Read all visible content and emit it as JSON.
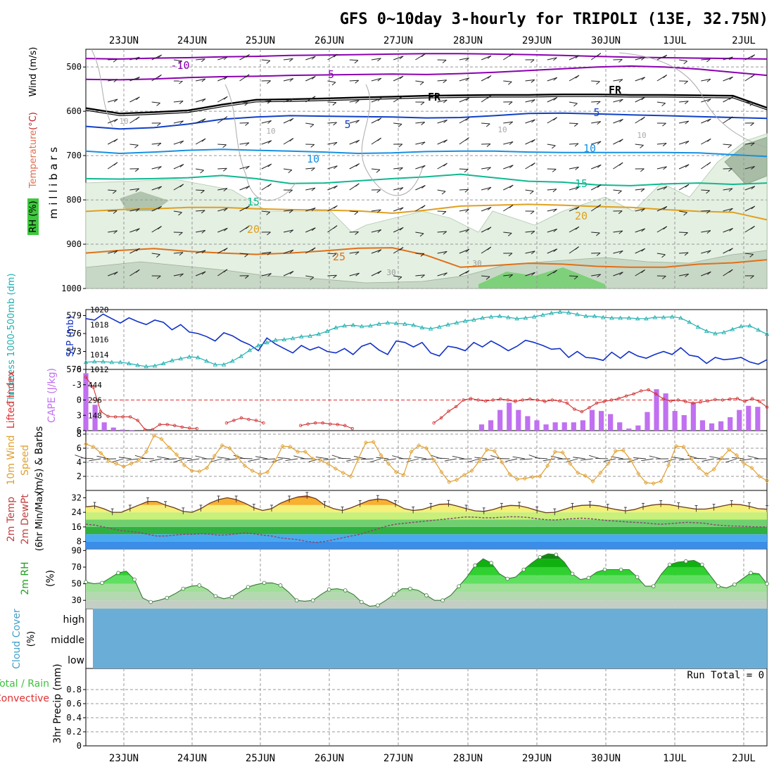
{
  "title": "GFS 0~10day 3-hourly for TRIPOLI (13E, 32.75N)",
  "dates": [
    "23JUN",
    "24JUN",
    "25JUN",
    "26JUN",
    "27JUN",
    "28JUN",
    "29JUN",
    "30JUN",
    "1JUL",
    "2JUL"
  ],
  "chart_data": [
    {
      "type": "contour",
      "panel": "upper-air",
      "ylabel_main": "m i l l i b a r s",
      "ylabel_rh": "RH (%)",
      "ylabel_temp": "Temperature",
      "ylabel_temp_unit": "(°C)",
      "ylabel_wind": "Wind (m/s)",
      "yticks": [
        500,
        600,
        700,
        800,
        900,
        1000
      ],
      "ylim": [
        460,
        1000
      ],
      "isotherms": [
        {
          "label": "-10",
          "color": "#8a00b0",
          "p": [
            481,
            482,
            480,
            479,
            477,
            476,
            474,
            473,
            472,
            471,
            470,
            470,
            471,
            472,
            474,
            476,
            478,
            479,
            480,
            481,
            482
          ]
        },
        {
          "label": "-5",
          "color": "#8a00b0",
          "p": [
            528,
            529,
            527,
            524,
            522,
            521,
            519,
            518,
            517,
            516,
            517,
            515,
            512,
            508,
            504,
            500,
            498,
            500,
            505,
            512,
            519
          ]
        },
        {
          "label": "FR",
          "color": "#000000",
          "p": [
            593,
            605,
            602,
            598,
            585,
            574,
            573,
            571,
            569,
            567,
            565,
            564,
            563,
            563,
            562,
            562,
            563,
            563,
            564,
            565,
            592
          ]
        },
        {
          "label": "5",
          "color": "#1040c8",
          "p": [
            634,
            640,
            637,
            629,
            618,
            613,
            610,
            611,
            612,
            613,
            615,
            614,
            610,
            605,
            604,
            606,
            608,
            610,
            612,
            614,
            616
          ]
        },
        {
          "label": "10",
          "color": "#1890e0",
          "p": [
            690,
            695,
            692,
            688,
            686,
            688,
            690,
            692,
            695,
            694,
            691,
            690,
            690,
            692,
            693,
            693,
            693,
            693,
            694,
            698,
            702
          ]
        },
        {
          "label": "15",
          "color": "#10b890",
          "p": [
            752,
            753,
            752,
            750,
            745,
            752,
            763,
            762,
            757,
            752,
            748,
            742,
            750,
            758,
            760,
            766,
            768,
            764,
            762,
            765,
            762
          ]
        },
        {
          "label": "20",
          "color": "#e0a020",
          "p": [
            826,
            822,
            820,
            817,
            817,
            820,
            822,
            823,
            825,
            830,
            823,
            814,
            812,
            810,
            812,
            815,
            817,
            822,
            826,
            828,
            845
          ]
        },
        {
          "label": "25",
          "color": "#e07018",
          "p": [
            920,
            914,
            910,
            916,
            920,
            923,
            920,
            915,
            909,
            908,
            925,
            952,
            948,
            943,
            945,
            950,
            952,
            952,
            945,
            942,
            935
          ]
        }
      ],
      "contour_labels": [
        "-10",
        "-5",
        "FR",
        "FR",
        "5",
        "5",
        "10",
        "10",
        "15",
        "15",
        "20",
        "20",
        "25",
        "30",
        "30",
        "10",
        "10",
        "10",
        "10"
      ]
    },
    {
      "type": "line",
      "panel": "thickness-slp",
      "ylabel_left": "Thickness 1000-500mb (dm)",
      "ylabel_right": "SLP (mb)",
      "yticks_left": [
        570,
        573,
        576,
        579
      ],
      "yticks_right": [
        1012,
        1014,
        1016,
        1018,
        1020
      ],
      "ylim_left": [
        570,
        580
      ],
      "ylim_right": [
        1012,
        1020
      ],
      "series": [
        {
          "name": "SLP",
          "color": "#1030c8",
          "values": [
            1018.8,
            1018.6,
            1019.4,
            1018.8,
            1018.2,
            1018.9,
            1018.4,
            1018.0,
            1018.6,
            1018.3,
            1017.3,
            1018.0,
            1017.0,
            1016.8,
            1016.4,
            1015.8,
            1016.9,
            1016.5,
            1015.8,
            1015.3,
            1014.5,
            1016.2,
            1015.4,
            1014.8,
            1014.2,
            1015.2,
            1014.6,
            1015.0,
            1014.4,
            1014.2,
            1014.8,
            1014.0,
            1015.1,
            1015.5,
            1014.6,
            1014.0,
            1015.8,
            1015.6,
            1015.0,
            1015.6,
            1014.2,
            1013.8,
            1015.1,
            1014.9,
            1014.5,
            1015.6,
            1015.0,
            1015.8,
            1015.2,
            1014.5,
            1015.1,
            1015.9,
            1015.6,
            1015.2,
            1014.7,
            1014.8,
            1013.6,
            1014.4,
            1013.6,
            1013.5,
            1013.2,
            1014.3,
            1013.5,
            1014.4,
            1013.8,
            1013.5,
            1014.0,
            1014.4,
            1014.0,
            1014.9,
            1013.9,
            1013.7,
            1012.8,
            1013.6,
            1013.3,
            1013.4,
            1013.6,
            1013.0,
            1012.7,
            1013.3
          ]
        },
        {
          "name": "Thickness",
          "color": "#20b0b0",
          "values": [
            571.2,
            571.3,
            571.3,
            571.2,
            571.2,
            571.0,
            570.7,
            570.5,
            570.6,
            571.0,
            571.5,
            571.8,
            572.1,
            572.0,
            571.4,
            570.8,
            570.8,
            571.4,
            572.2,
            573.2,
            574.0,
            574.5,
            574.9,
            575.0,
            575.2,
            575.5,
            575.6,
            575.9,
            576.4,
            577.0,
            577.3,
            577.4,
            577.2,
            577.3,
            577.6,
            577.8,
            577.7,
            577.6,
            577.4,
            577.0,
            576.8,
            577.1,
            577.5,
            577.8,
            578.1,
            578.3,
            578.6,
            578.8,
            578.9,
            578.7,
            578.5,
            578.6,
            578.8,
            579.1,
            579.4,
            579.6,
            579.5,
            579.2,
            578.9,
            578.9,
            578.7,
            578.6,
            578.6,
            578.6,
            578.5,
            578.5,
            578.7,
            578.7,
            578.8,
            578.6,
            577.9,
            577.1,
            576.4,
            576.0,
            576.2,
            576.7,
            577.2,
            577.3,
            576.6,
            575.9
          ]
        }
      ]
    },
    {
      "type": "bar+line",
      "panel": "lifted-index-cape",
      "ylabel_left": "Lifted Index",
      "ylabel_right": "CAPE (J/kg)",
      "yticks_left": [
        -6,
        -3,
        0,
        3,
        6
      ],
      "yticks_right": [
        148,
        296,
        444
      ],
      "ylim_left": [
        -6,
        6
      ],
      "ylim_cape": [
        0,
        592
      ],
      "cape": [
        555,
        250,
        80,
        30,
        10,
        5,
        0,
        0,
        0,
        0,
        0,
        0,
        0,
        0,
        0,
        0,
        0,
        0,
        0,
        0,
        0,
        0,
        0,
        0,
        0,
        0,
        0,
        0,
        0,
        0,
        0,
        0,
        0,
        0,
        0,
        0,
        0,
        0,
        0,
        0,
        0,
        0,
        0,
        60,
        100,
        200,
        270,
        200,
        140,
        100,
        60,
        80,
        80,
        80,
        100,
        200,
        190,
        160,
        80,
        20,
        50,
        180,
        400,
        360,
        190,
        150,
        270,
        100,
        70,
        90,
        130,
        200,
        240,
        230,
        0
      ],
      "lifted_index": [
        -4.5,
        -2.5,
        2.2,
        3.2,
        3.3,
        3.3,
        3.3,
        4.0,
        5.8,
        5.8,
        4.8,
        4.8,
        5.0,
        5.3,
        5.5,
        5.6,
        null,
        null,
        null,
        4.5,
        4.0,
        3.5,
        3.8,
        4.0,
        4.5,
        null,
        null,
        null,
        null,
        5.0,
        4.7,
        4.5,
        4.5,
        4.7,
        4.8,
        5.0,
        5.6,
        null,
        null,
        null,
        null,
        null,
        null,
        null,
        null,
        null,
        null,
        4.5,
        3.5,
        2.2,
        1.3,
        0.0,
        -0.3,
        0.0,
        0.2,
        0.0,
        -0.2,
        0.0,
        0.3,
        0.0,
        -0.2,
        0.0,
        0.3,
        0.0,
        0.2,
        0.6,
        1.8,
        2.3,
        1.5,
        0.6,
        0.3,
        0.0,
        -0.3,
        -0.8,
        -1.2,
        -1.8,
        -2.0,
        -1.2,
        -0.2,
        0.2,
        0.0,
        0.3,
        0.6,
        0.4,
        0.2,
        -0.1,
        0.0,
        -0.2,
        -0.3,
        0.3,
        -0.3,
        0.3,
        1.4
      ]
    },
    {
      "type": "line",
      "panel": "10m-wind",
      "ylabel": "10m Wind",
      "ylabel2": "Speed",
      "ylabel3": "(m/s) & Barbs",
      "yticks": [
        2,
        4,
        6,
        8
      ],
      "ylim": [
        0,
        8.5
      ],
      "values": [
        6.6,
        6.2,
        5.3,
        4.2,
        3.8,
        3.4,
        3.8,
        4.3,
        5.5,
        7.8,
        7.3,
        6.1,
        5.1,
        3.6,
        2.8,
        2.7,
        3.2,
        4.9,
        6.4,
        6.0,
        4.8,
        3.5,
        2.8,
        2.3,
        2.6,
        4.2,
        6.3,
        6.2,
        5.5,
        5.5,
        4.5,
        4.3,
        3.8,
        3.1,
        2.5,
        2.0,
        4.5,
        6.8,
        6.9,
        5.0,
        3.8,
        2.6,
        2.2,
        5.5,
        6.4,
        6.0,
        4.3,
        2.6,
        1.2,
        1.5,
        2.2,
        2.8,
        4.2,
        5.8,
        5.6,
        4.0,
        2.3,
        1.6,
        1.7,
        1.9,
        2.0,
        3.5,
        5.5,
        5.4,
        3.8,
        2.5,
        2.1,
        1.3,
        2.5,
        3.8,
        5.6,
        5.7,
        4.3,
        2.4,
        1.1,
        1.0,
        1.3,
        3.6,
        6.3,
        6.2,
        4.5,
        3.2,
        2.3,
        3.0,
        4.6,
        5.8,
        5.0,
        3.8,
        3.2,
        2.0,
        1.4
      ]
    },
    {
      "type": "area",
      "panel": "2m-temp",
      "ylabel": "2m Temp",
      "ylabel2": "2m DewPt",
      "ylabel3": "(6hr Min/Max)",
      "yticks": [
        8,
        16,
        24,
        32
      ],
      "ylim": [
        4,
        36
      ],
      "temp": [
        27,
        27.5,
        26,
        24,
        24,
        26,
        28,
        30,
        30,
        28,
        26.5,
        24.5,
        24,
        26,
        29,
        31,
        32,
        31,
        29,
        26.5,
        25,
        26,
        29,
        31,
        32.5,
        33,
        31.5,
        28,
        26,
        25,
        26.5,
        28.5,
        30.5,
        31.3,
        30.8,
        28.5,
        26,
        25,
        25.5,
        27,
        28.4,
        28.6,
        27.4,
        26,
        24.8,
        24.5,
        25.5,
        27,
        27.8,
        27.6,
        26.5,
        25,
        23.8,
        24,
        25.5,
        27,
        27.8,
        28,
        27.6,
        26.5,
        25.5,
        24.8,
        25.5,
        27,
        28,
        28.5,
        28.2,
        27.3,
        26.5,
        25.8,
        25.8,
        26.5,
        27.5,
        28.5,
        28.2,
        27.3,
        26,
        25.7
      ],
      "dewpt": [
        17.5,
        17,
        16,
        15,
        14,
        13.5,
        13,
        12,
        11,
        11,
        11.5,
        12,
        12,
        12.3,
        12.1,
        11.5,
        11.7,
        12.2,
        12.7,
        12.3,
        11.5,
        11,
        10,
        9.5,
        9,
        8,
        7.5,
        8,
        9,
        10,
        11,
        12,
        13.5,
        15,
        16.5,
        17.5,
        18,
        18.5,
        19,
        19.5,
        20,
        20.5,
        21,
        21.5,
        21.3,
        21,
        21,
        21.3,
        21.6,
        21.5,
        21.2,
        20.5,
        20,
        19.8,
        20.2,
        20.5,
        20.8,
        20.5,
        20,
        19.5,
        19.2,
        18.8,
        18.5,
        18.3,
        17.8,
        17.5,
        17.8,
        18.2,
        18.5,
        18.3,
        18.0,
        17.2,
        16.8,
        16.5,
        16.4,
        16.2,
        16.0,
        16.0
      ]
    },
    {
      "type": "area",
      "panel": "2m-rh",
      "ylabel": "2m RH",
      "ylabel_unit": "(%)",
      "yticks": [
        30,
        50,
        70,
        90
      ],
      "ylim": [
        20,
        92
      ],
      "values": [
        52,
        50,
        51,
        57,
        63,
        65,
        55,
        33,
        28,
        30,
        33,
        38,
        44,
        47,
        48,
        43,
        35,
        32,
        34,
        40,
        46,
        49,
        51,
        51,
        48,
        40,
        30,
        29,
        30,
        37,
        43,
        44,
        42,
        37,
        28,
        23,
        24,
        30,
        37,
        44,
        44,
        42,
        36,
        30,
        30,
        36,
        47,
        58,
        72,
        80,
        75,
        62,
        56,
        58,
        67,
        75,
        82,
        86,
        85,
        76,
        62,
        55,
        57,
        64,
        67,
        67,
        67,
        67,
        58,
        47,
        47,
        62,
        73,
        76,
        77,
        78,
        73,
        60,
        47,
        45,
        49,
        56,
        63,
        62,
        50
      ]
    },
    {
      "type": "heatmap",
      "panel": "cloud-cover",
      "ylabel": "Cloud Cover",
      "ylabel_unit": "(%)",
      "levels": [
        "high",
        "middle",
        "low"
      ],
      "values_percent": [
        0,
        0,
        0
      ]
    },
    {
      "type": "bar",
      "panel": "3hr-precip",
      "ylabel": "3hr Precip (mm)",
      "ylabel_total": "Total / Rain",
      "ylabel_conv": "Convective",
      "yticks": [
        0,
        0.2,
        0.4,
        0.6,
        0.8
      ],
      "ylim": [
        0,
        1
      ],
      "run_total": "Run Total = 0",
      "values": []
    }
  ]
}
